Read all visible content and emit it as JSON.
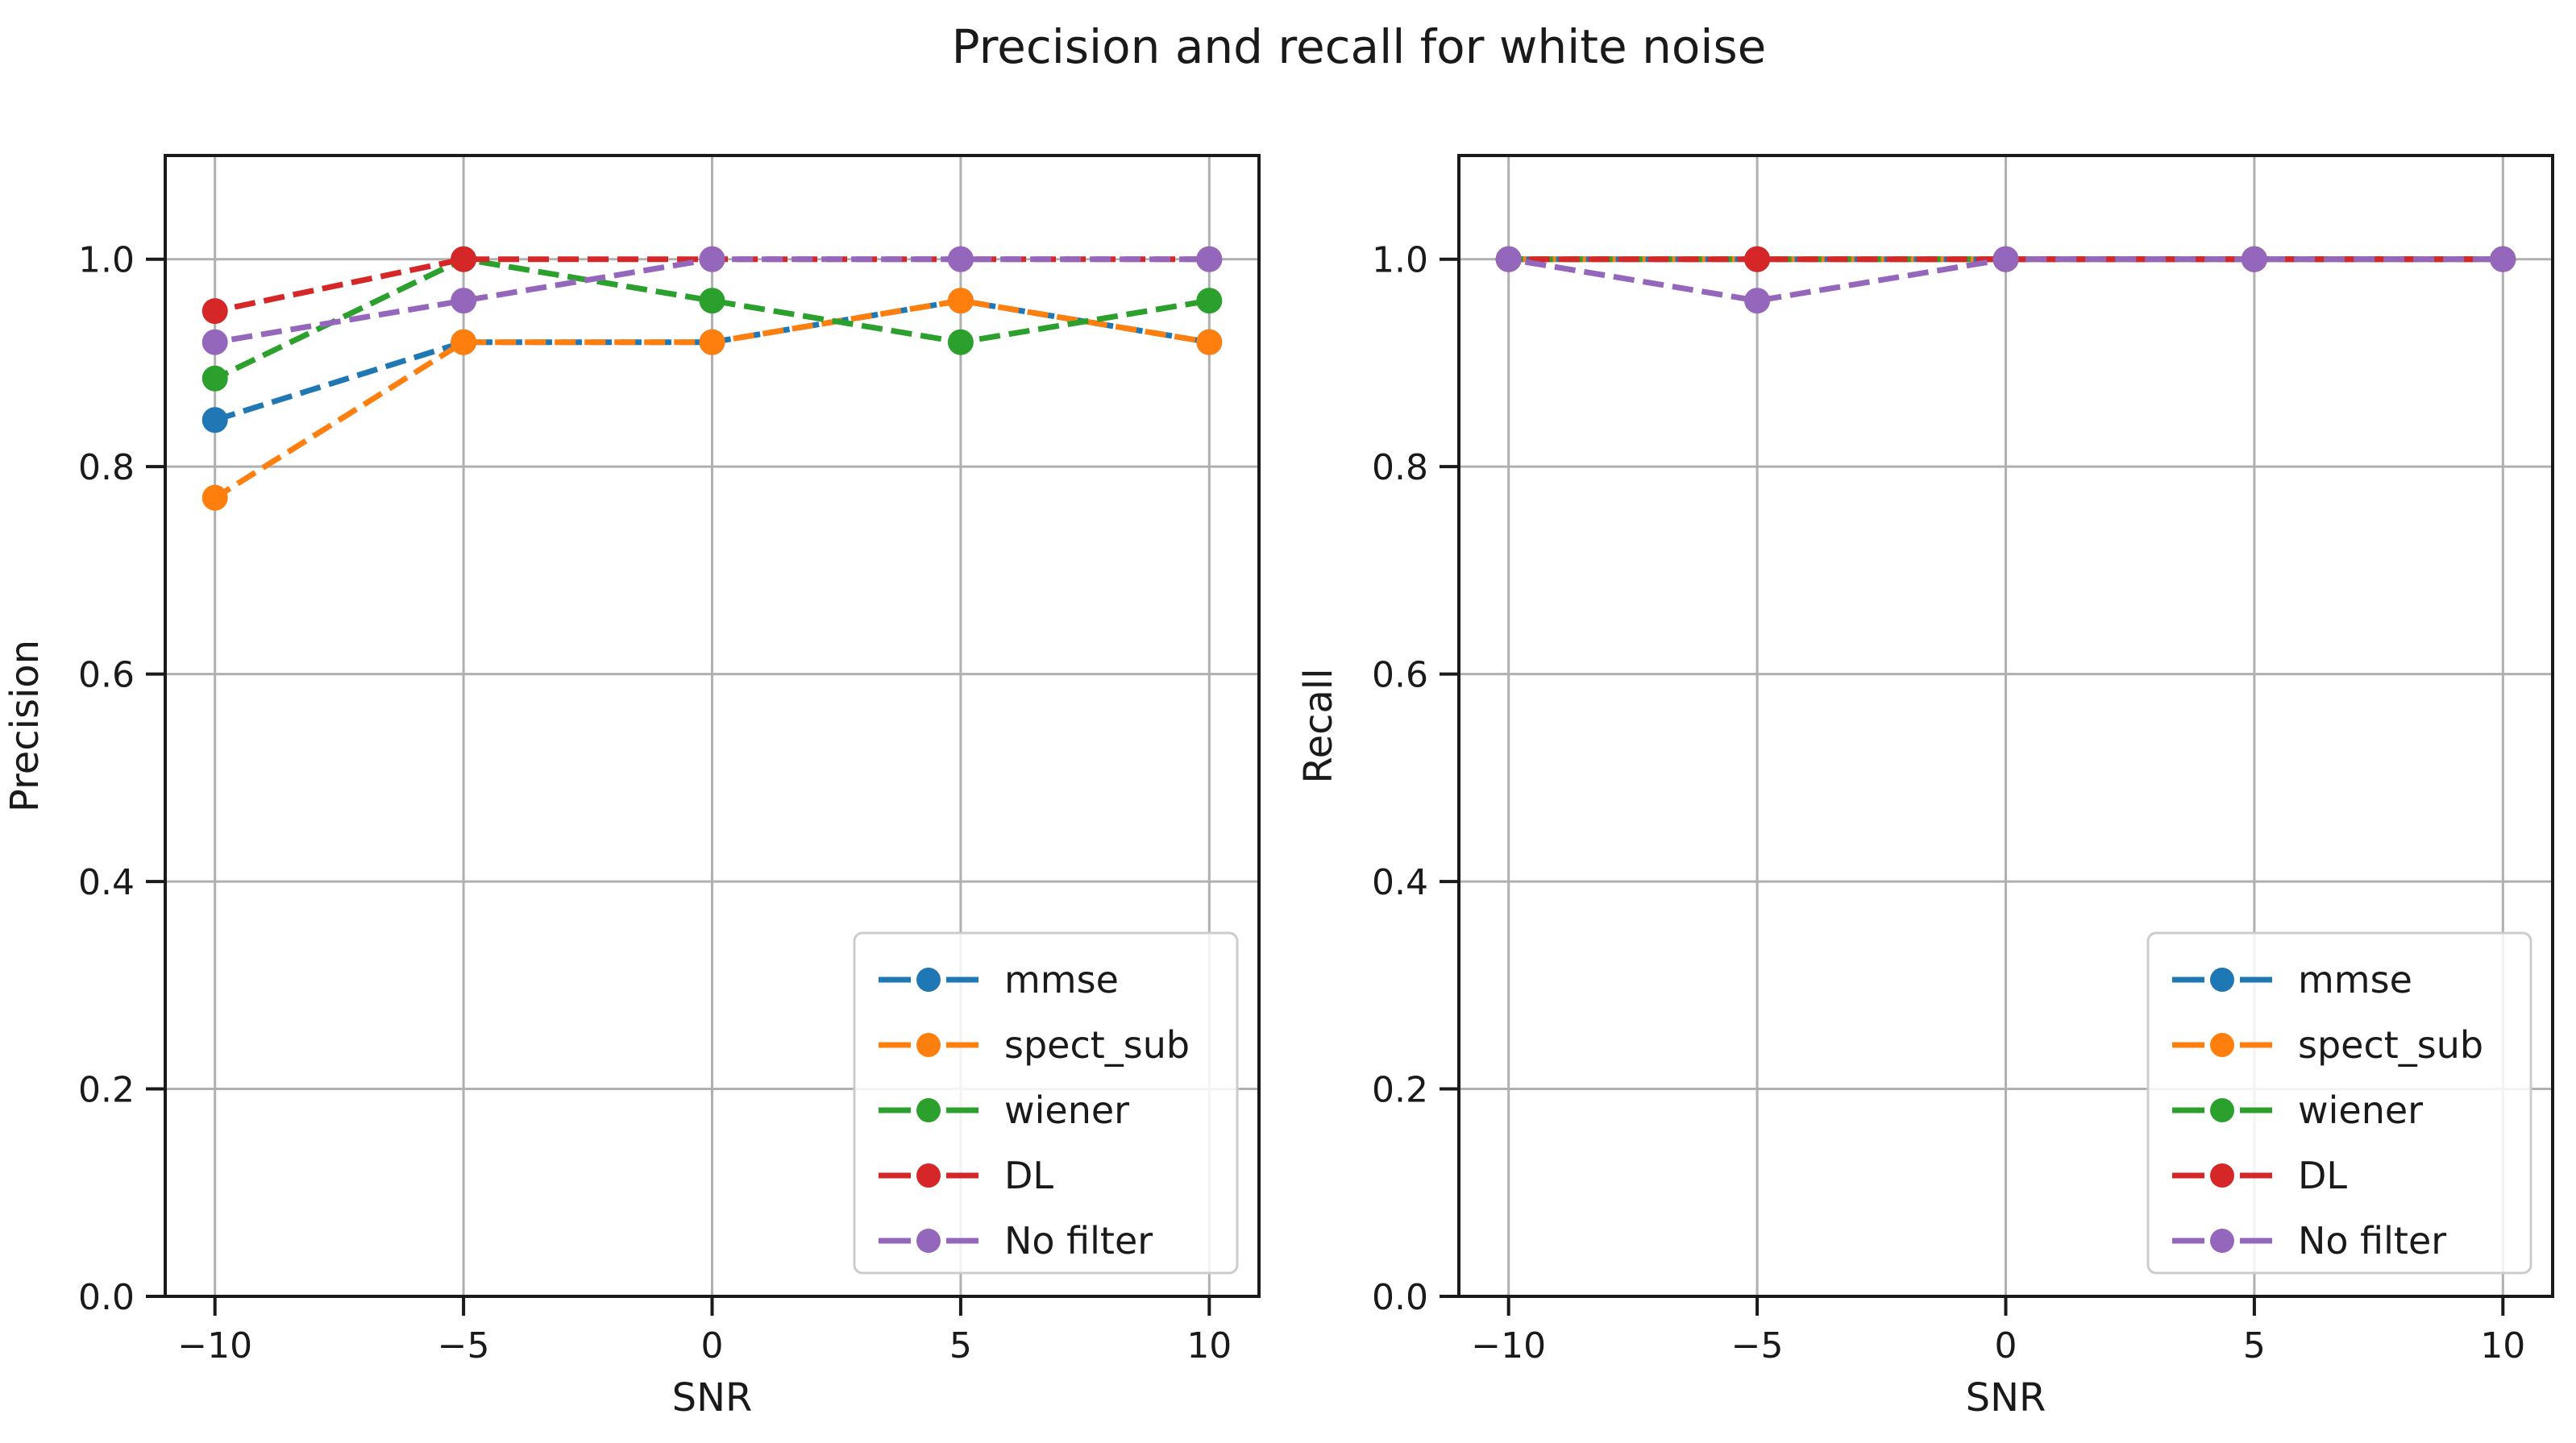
{
  "figure": {
    "title": "Precision and recall for white noise"
  },
  "chart_data": [
    {
      "type": "line",
      "name": "precision",
      "title": "",
      "xlabel": "SNR",
      "ylabel": "Precision",
      "x": [
        -10,
        -5,
        0,
        5,
        10
      ],
      "xlim": [
        -11,
        11
      ],
      "ylim": [
        0,
        1.1
      ],
      "xtick_values": [
        -10,
        -5,
        0,
        5,
        10
      ],
      "xtick_labels": [
        "−10",
        "−5",
        "0",
        "5",
        "10"
      ],
      "ytick_values": [
        0.0,
        0.2,
        0.4,
        0.6,
        0.8,
        1.0
      ],
      "ytick_labels": [
        "0.0",
        "0.2",
        "0.4",
        "0.6",
        "0.8",
        "1.0"
      ],
      "grid": true,
      "line_style": "dashed",
      "marker": "circle",
      "legend_location": "lower right",
      "series": [
        {
          "name": "mmse",
          "color": "#1f77b4",
          "values": [
            0.845,
            0.92,
            0.92,
            0.96,
            0.92
          ]
        },
        {
          "name": "spect_sub",
          "color": "#ff7f0e",
          "values": [
            0.77,
            0.92,
            0.92,
            0.96,
            0.92
          ]
        },
        {
          "name": "wiener",
          "color": "#2ca02c",
          "values": [
            0.885,
            1.0,
            0.96,
            0.92,
            0.96
          ]
        },
        {
          "name": "DL",
          "color": "#d62728",
          "values": [
            0.95,
            1.0,
            1.0,
            1.0,
            1.0
          ]
        },
        {
          "name": "No filter",
          "color": "#9467bd",
          "values": [
            0.92,
            0.96,
            1.0,
            1.0,
            1.0
          ]
        }
      ]
    },
    {
      "type": "line",
      "name": "recall",
      "title": "",
      "xlabel": "SNR",
      "ylabel": "Recall",
      "x": [
        -10,
        -5,
        0,
        5,
        10
      ],
      "xlim": [
        -11,
        11
      ],
      "ylim": [
        0,
        1.1
      ],
      "xtick_values": [
        -10,
        -5,
        0,
        5,
        10
      ],
      "xtick_labels": [
        "−10",
        "−5",
        "0",
        "5",
        "10"
      ],
      "ytick_values": [
        0.0,
        0.2,
        0.4,
        0.6,
        0.8,
        1.0
      ],
      "ytick_labels": [
        "0.0",
        "0.2",
        "0.4",
        "0.6",
        "0.8",
        "1.0"
      ],
      "grid": true,
      "line_style": "dashed",
      "marker": "circle",
      "legend_location": "lower right",
      "series": [
        {
          "name": "mmse",
          "color": "#1f77b4",
          "values": [
            1.0,
            1.0,
            1.0,
            1.0,
            1.0
          ]
        },
        {
          "name": "spect_sub",
          "color": "#ff7f0e",
          "values": [
            1.0,
            1.0,
            1.0,
            1.0,
            1.0
          ]
        },
        {
          "name": "wiener",
          "color": "#2ca02c",
          "values": [
            1.0,
            1.0,
            1.0,
            1.0,
            1.0
          ]
        },
        {
          "name": "DL",
          "color": "#d62728",
          "values": [
            1.0,
            1.0,
            1.0,
            1.0,
            1.0
          ]
        },
        {
          "name": "No filter",
          "color": "#9467bd",
          "values": [
            1.0,
            0.96,
            1.0,
            1.0,
            1.0
          ]
        }
      ]
    }
  ]
}
